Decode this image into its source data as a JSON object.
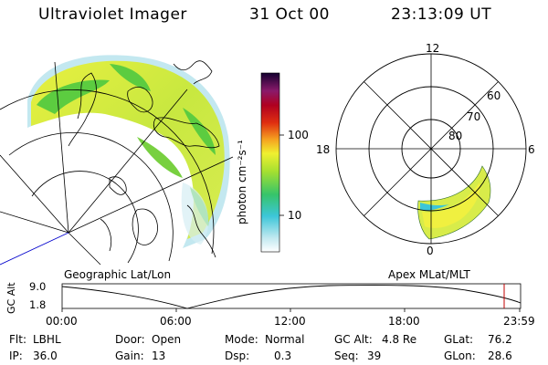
{
  "header": {
    "title": "Ultraviolet Imager",
    "date": "31 Oct 00",
    "time": "23:13:09 UT"
  },
  "panels": {
    "geo_label": "Geographic Lat/Lon",
    "apex_label": "Apex MLat/MLT"
  },
  "colorbar": {
    "unit_label": "photon cm⁻²s⁻¹",
    "tick_100": "100",
    "tick_10": "10"
  },
  "polar": {
    "mlt_12": "12",
    "mlt_18": "18",
    "mlt_6": "6",
    "mlt_0": "0",
    "lat_60": "60",
    "lat_70": "70",
    "lat_80": "80"
  },
  "altitude_plot": {
    "y_label": "GC Alt",
    "y_max": "9.0",
    "y_min": "1.8",
    "x_ticks": [
      "00:00",
      "06:00",
      "12:00",
      "18:00",
      "23:59"
    ],
    "marker_color": "#c00000"
  },
  "footer": {
    "row1": [
      {
        "label": "Flt:",
        "value": "LBHL"
      },
      {
        "label": "Door:",
        "value": "Open"
      },
      {
        "label": "Mode:",
        "value": "Normal"
      },
      {
        "label": "GC Alt:",
        "value": "4.8 Re"
      },
      {
        "label": "GLat:",
        "value": "76.2"
      }
    ],
    "row2": [
      {
        "label": "IP:",
        "value": "36.0"
      },
      {
        "label": "Gain:",
        "value": "13"
      },
      {
        "label": "Dsp:",
        "value": "0.3"
      },
      {
        "label": "Seq:",
        "value": "39"
      },
      {
        "label": "GLon:",
        "value": "28.6"
      }
    ]
  }
}
